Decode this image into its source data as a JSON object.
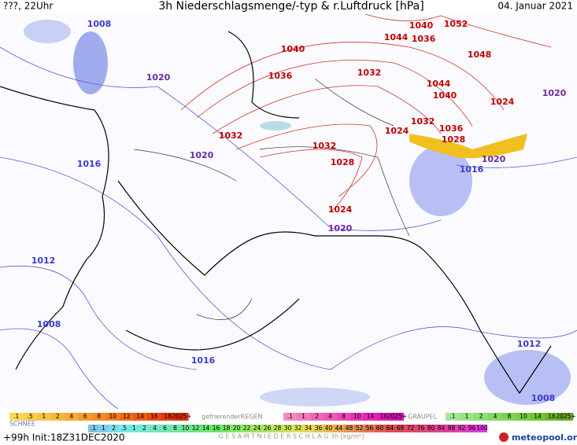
{
  "header": {
    "left": "???, 22Uhr",
    "title": "3h Niederschlagsmenge/-typ & r.Luftdruck [hPa]",
    "date": "04. Januar 2021"
  },
  "isobar_labels": [
    {
      "value": 1008,
      "color": "#3a3ad0"
    },
    {
      "value": 1020,
      "color": "#6a2aa0"
    },
    {
      "value": 1016,
      "color": "#3a3ad0"
    },
    {
      "value": 1020,
      "color": "#6a2aa0"
    },
    {
      "value": 1032,
      "color": "#c00000"
    },
    {
      "value": 1040,
      "color": "#c00000"
    },
    {
      "value": 1036,
      "color": "#c00000"
    },
    {
      "value": 1032,
      "color": "#c00000"
    },
    {
      "value": 1044,
      "color": "#c00000"
    },
    {
      "value": 1040,
      "color": "#c00000"
    },
    {
      "value": 1036,
      "color": "#c00000"
    },
    {
      "value": 1052,
      "color": "#c00000"
    },
    {
      "value": 1048,
      "color": "#c00000"
    },
    {
      "value": 1044,
      "color": "#c00000"
    },
    {
      "value": 1040,
      "color": "#c00000"
    },
    {
      "value": 1024,
      "color": "#c00000"
    },
    {
      "value": 1020,
      "color": "#6a2aa0"
    },
    {
      "value": 1032,
      "color": "#c00000"
    },
    {
      "value": 1028,
      "color": "#c00000"
    },
    {
      "value": 1024,
      "color": "#c00000"
    },
    {
      "value": 1032,
      "color": "#c00000"
    },
    {
      "value": 1036,
      "color": "#c00000"
    },
    {
      "value": 1028,
      "color": "#c00000"
    },
    {
      "value": 1016,
      "color": "#3a3ad0"
    },
    {
      "value": 1020,
      "color": "#6a2aa0"
    },
    {
      "value": 1024,
      "color": "#c00000"
    },
    {
      "value": 1020,
      "color": "#6a2aa0"
    },
    {
      "value": 1012,
      "color": "#3a3ad0"
    },
    {
      "value": 1008,
      "color": "#3a3ad0"
    },
    {
      "value": 1016,
      "color": "#3a3ad0"
    },
    {
      "value": 1012,
      "color": "#3a3ad0"
    },
    {
      "value": 1008,
      "color": "#3a3ad0"
    }
  ],
  "legend": {
    "snow": {
      "name": "SCHNEE",
      "steps": [
        ".1",
        ".5",
        "1",
        "2",
        "4",
        "6",
        "8",
        "10",
        "12",
        "14",
        "16",
        "18",
        "2025+"
      ]
    },
    "freezing_rain": {
      "name": "gefrierenderREGEN",
      "steps": [
        ".1",
        "1",
        "2",
        "4",
        "8",
        "10",
        "14",
        "16",
        "2025+"
      ]
    },
    "graupel": {
      "name": "GRAUPEL",
      "steps": [
        ".1",
        "1",
        "2",
        "4",
        "8",
        "10",
        "14",
        "16",
        "2025+"
      ]
    },
    "total": {
      "name": "G E S A M T N I E D E R S C H L A G   3h  [kg/m²]",
      "steps": [
        ".1",
        "1",
        "2",
        ".5",
        "1",
        "2",
        "4",
        "6",
        "8",
        "10",
        "12",
        "14",
        "16",
        "18",
        "20",
        "22",
        "24",
        "26",
        "28",
        "30",
        "32",
        "34",
        "36",
        "40",
        "44",
        "48",
        "52",
        "56",
        "60",
        "64",
        "68",
        "72",
        "76",
        "80",
        "84",
        "88",
        "92",
        "96",
        "100"
      ]
    }
  },
  "footer": {
    "init": "+99h Init:18Z31DEC2020",
    "brand": "meteopool.org"
  }
}
